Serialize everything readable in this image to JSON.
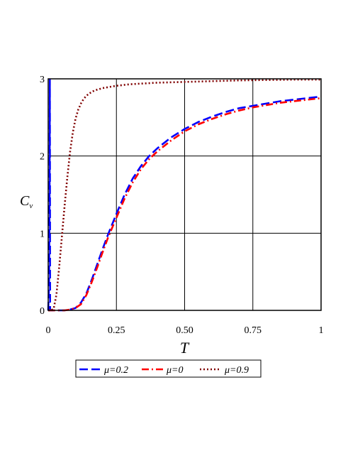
{
  "chart_data": {
    "type": "line",
    "xlabel": "T",
    "ylabel": "C",
    "ylabel_sub": "v",
    "xlim": [
      0,
      1
    ],
    "ylim": [
      0,
      3
    ],
    "xticks": [
      "0",
      "0.25",
      "0.50",
      "0.75",
      "1"
    ],
    "xtick_values": [
      0,
      0.25,
      0.5,
      0.75,
      1
    ],
    "yticks": [
      "0",
      "1",
      "2",
      "3"
    ],
    "ytick_values": [
      0,
      1,
      2,
      3
    ],
    "grid": true,
    "legend_position": "bottom",
    "series": [
      {
        "name": "μ=0.2",
        "color": "#0000ff",
        "dash": "dashed",
        "x": [
          0,
          0.003,
          0.005,
          0.006,
          0.007,
          0.01,
          0.02,
          0.04,
          0.06,
          0.08,
          0.1,
          0.12,
          0.14,
          0.16,
          0.18,
          0.2,
          0.22,
          0.25,
          0.28,
          0.31,
          0.34,
          0.37,
          0.4,
          0.45,
          0.5,
          0.55,
          0.6,
          0.65,
          0.7,
          0.75,
          0.8,
          0.85,
          0.9,
          0.95,
          1.0
        ],
        "y": [
          0,
          0.3,
          1.5,
          3.0,
          0,
          0,
          0,
          0,
          0,
          0.01,
          0.03,
          0.1,
          0.22,
          0.4,
          0.6,
          0.8,
          0.99,
          1.25,
          1.5,
          1.71,
          1.87,
          2.0,
          2.1,
          2.24,
          2.35,
          2.44,
          2.51,
          2.57,
          2.62,
          2.65,
          2.68,
          2.71,
          2.73,
          2.75,
          2.77
        ]
      },
      {
        "name": "μ=0",
        "color": "#ff0000",
        "dash": "dashdot",
        "x": [
          0,
          0.02,
          0.04,
          0.06,
          0.08,
          0.1,
          0.12,
          0.14,
          0.16,
          0.18,
          0.2,
          0.22,
          0.25,
          0.28,
          0.31,
          0.34,
          0.37,
          0.4,
          0.45,
          0.5,
          0.55,
          0.6,
          0.65,
          0.7,
          0.75,
          0.8,
          0.85,
          0.9,
          0.95,
          1.0
        ],
        "y": [
          0,
          0,
          0,
          0,
          0.01,
          0.03,
          0.08,
          0.2,
          0.37,
          0.56,
          0.76,
          0.95,
          1.2,
          1.45,
          1.66,
          1.83,
          1.96,
          2.06,
          2.2,
          2.32,
          2.41,
          2.48,
          2.54,
          2.59,
          2.63,
          2.66,
          2.69,
          2.71,
          2.73,
          2.75
        ]
      },
      {
        "name": "μ=0.9",
        "color": "#800000",
        "dash": "dotted",
        "x": [
          0,
          0.01,
          0.02,
          0.03,
          0.04,
          0.05,
          0.06,
          0.07,
          0.08,
          0.09,
          0.1,
          0.11,
          0.12,
          0.13,
          0.14,
          0.15,
          0.17,
          0.2,
          0.25,
          0.3,
          0.4,
          0.5,
          0.6,
          0.7,
          0.8,
          0.9,
          1.0
        ],
        "y": [
          0,
          0,
          0.02,
          0.2,
          0.55,
          0.95,
          1.35,
          1.72,
          2.05,
          2.3,
          2.48,
          2.6,
          2.68,
          2.74,
          2.78,
          2.81,
          2.85,
          2.88,
          2.91,
          2.93,
          2.95,
          2.96,
          2.97,
          2.98,
          2.985,
          2.99,
          2.99
        ]
      }
    ]
  }
}
